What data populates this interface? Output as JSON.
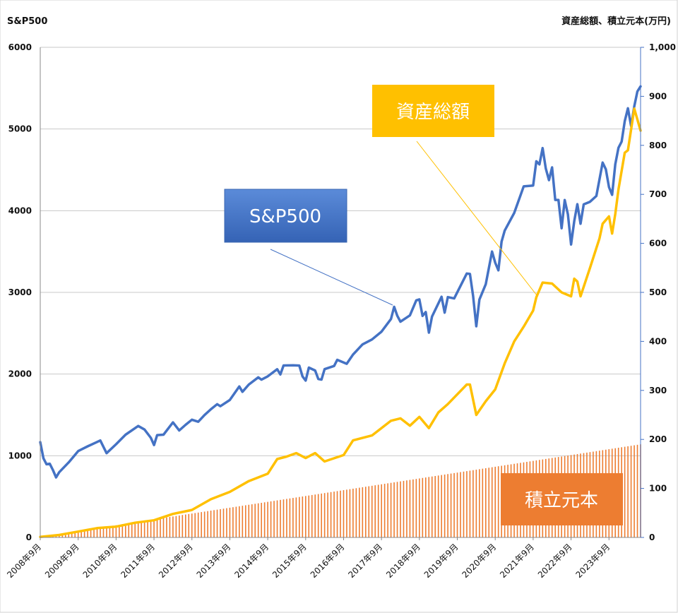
{
  "chart_data": {
    "type": "line",
    "left_axis_title": "S&P500",
    "right_axis_title": "資産総額、積立元本(万円)",
    "left_ylim": [
      0,
      6000
    ],
    "left_yticks": [
      "0",
      "1000",
      "2000",
      "3000",
      "4000",
      "5000",
      "6000"
    ],
    "right_ylim": [
      0,
      1000
    ],
    "right_yticks": [
      "0",
      "100",
      "200",
      "300",
      "400",
      "500",
      "600",
      "700",
      "800",
      "900",
      "1,000"
    ],
    "x_start": "2008-09",
    "x_end": "2024-07",
    "x_tick_labels": [
      "2008年9月",
      "2009年9月",
      "2010年9月",
      "2011年9月",
      "2012年9月",
      "2013年9月",
      "2014年9月",
      "2015年9月",
      "2016年9月",
      "2017年9月",
      "2018年9月",
      "2019年9月",
      "2020年9月",
      "2021年9月",
      "2022年9月",
      "2023年9月"
    ],
    "grid": true,
    "series": [
      {
        "name": "S&P500",
        "axis": "left",
        "color": "#4472C4",
        "kind": "line",
        "points": [
          [
            "2008-09",
            1166
          ],
          [
            "2008-10",
            969
          ],
          [
            "2008-11",
            896
          ],
          [
            "2008-12",
            903
          ],
          [
            "2009-01",
            826
          ],
          [
            "2009-02",
            735
          ],
          [
            "2009-03",
            798
          ],
          [
            "2009-06",
            919
          ],
          [
            "2009-09",
            1057
          ],
          [
            "2009-12",
            1115
          ],
          [
            "2010-03",
            1169
          ],
          [
            "2010-04",
            1187
          ],
          [
            "2010-06",
            1031
          ],
          [
            "2010-09",
            1141
          ],
          [
            "2010-12",
            1258
          ],
          [
            "2011-04",
            1364
          ],
          [
            "2011-06",
            1321
          ],
          [
            "2011-08",
            1219
          ],
          [
            "2011-09",
            1131
          ],
          [
            "2011-10",
            1253
          ],
          [
            "2011-12",
            1258
          ],
          [
            "2012-03",
            1408
          ],
          [
            "2012-05",
            1310
          ],
          [
            "2012-07",
            1379
          ],
          [
            "2012-09",
            1441
          ],
          [
            "2012-11",
            1416
          ],
          [
            "2013-01",
            1498
          ],
          [
            "2013-03",
            1569
          ],
          [
            "2013-05",
            1631
          ],
          [
            "2013-06",
            1606
          ],
          [
            "2013-09",
            1682
          ],
          [
            "2013-12",
            1848
          ],
          [
            "2014-01",
            1783
          ],
          [
            "2014-03",
            1872
          ],
          [
            "2014-06",
            1960
          ],
          [
            "2014-07",
            1931
          ],
          [
            "2014-09",
            1972
          ],
          [
            "2014-12",
            2059
          ],
          [
            "2015-01",
            1995
          ],
          [
            "2015-02",
            2105
          ],
          [
            "2015-05",
            2107
          ],
          [
            "2015-07",
            2104
          ],
          [
            "2015-08",
            1972
          ],
          [
            "2015-09",
            1920
          ],
          [
            "2015-10",
            2079
          ],
          [
            "2015-12",
            2044
          ],
          [
            "2016-01",
            1940
          ],
          [
            "2016-02",
            1932
          ],
          [
            "2016-03",
            2060
          ],
          [
            "2016-06",
            2099
          ],
          [
            "2016-07",
            2174
          ],
          [
            "2016-10",
            2126
          ],
          [
            "2016-12",
            2239
          ],
          [
            "2017-03",
            2363
          ],
          [
            "2017-06",
            2423
          ],
          [
            "2017-09",
            2519
          ],
          [
            "2017-12",
            2674
          ],
          [
            "2018-01",
            2824
          ],
          [
            "2018-02",
            2714
          ],
          [
            "2018-03",
            2641
          ],
          [
            "2018-06",
            2718
          ],
          [
            "2018-08",
            2902
          ],
          [
            "2018-09",
            2914
          ],
          [
            "2018-10",
            2712
          ],
          [
            "2018-11",
            2760
          ],
          [
            "2018-12",
            2507
          ],
          [
            "2019-01",
            2704
          ],
          [
            "2019-04",
            2946
          ],
          [
            "2019-05",
            2752
          ],
          [
            "2019-06",
            2942
          ],
          [
            "2019-08",
            2926
          ],
          [
            "2019-12",
            3231
          ],
          [
            "2020-01",
            3226
          ],
          [
            "2020-02",
            2954
          ],
          [
            "2020-03",
            2585
          ],
          [
            "2020-04",
            2912
          ],
          [
            "2020-06",
            3100
          ],
          [
            "2020-08",
            3500
          ],
          [
            "2020-09",
            3363
          ],
          [
            "2020-10",
            3270
          ],
          [
            "2020-11",
            3622
          ],
          [
            "2020-12",
            3756
          ],
          [
            "2021-03",
            3973
          ],
          [
            "2021-06",
            4298
          ],
          [
            "2021-09",
            4308
          ],
          [
            "2021-10",
            4605
          ],
          [
            "2021-11",
            4567
          ],
          [
            "2021-12",
            4766
          ],
          [
            "2022-01",
            4516
          ],
          [
            "2022-02",
            4374
          ],
          [
            "2022-03",
            4530
          ],
          [
            "2022-04",
            4132
          ],
          [
            "2022-05",
            4132
          ],
          [
            "2022-06",
            3785
          ],
          [
            "2022-07",
            4130
          ],
          [
            "2022-08",
            3955
          ],
          [
            "2022-09",
            3586
          ],
          [
            "2022-10",
            3872
          ],
          [
            "2022-11",
            4080
          ],
          [
            "2022-12",
            3840
          ],
          [
            "2023-01",
            4077
          ],
          [
            "2023-03",
            4109
          ],
          [
            "2023-05",
            4180
          ],
          [
            "2023-07",
            4589
          ],
          [
            "2023-08",
            4508
          ],
          [
            "2023-09",
            4288
          ],
          [
            "2023-10",
            4194
          ],
          [
            "2023-11",
            4568
          ],
          [
            "2023-12",
            4770
          ],
          [
            "2024-01",
            4846
          ],
          [
            "2024-02",
            5096
          ],
          [
            "2024-03",
            5254
          ],
          [
            "2024-04",
            5036
          ],
          [
            "2024-05",
            5278
          ],
          [
            "2024-06",
            5460
          ],
          [
            "2024-07",
            5522
          ]
        ]
      },
      {
        "name": "資産総額",
        "axis": "right",
        "color": "#FFC000",
        "kind": "line",
        "points": [
          [
            "2008-09",
            1
          ],
          [
            "2009-03",
            5
          ],
          [
            "2009-09",
            12
          ],
          [
            "2010-03",
            19
          ],
          [
            "2010-09",
            22
          ],
          [
            "2011-03",
            30
          ],
          [
            "2011-09",
            35
          ],
          [
            "2012-03",
            48
          ],
          [
            "2012-09",
            56
          ],
          [
            "2013-03",
            78
          ],
          [
            "2013-09",
            93
          ],
          [
            "2014-03",
            115
          ],
          [
            "2014-09",
            130
          ],
          [
            "2014-12",
            160
          ],
          [
            "2015-03",
            165
          ],
          [
            "2015-06",
            172
          ],
          [
            "2015-09",
            162
          ],
          [
            "2015-12",
            172
          ],
          [
            "2016-03",
            155
          ],
          [
            "2016-09",
            168
          ],
          [
            "2016-12",
            198
          ],
          [
            "2017-06",
            208
          ],
          [
            "2017-12",
            238
          ],
          [
            "2018-03",
            243
          ],
          [
            "2018-06",
            228
          ],
          [
            "2018-09",
            246
          ],
          [
            "2018-12",
            223
          ],
          [
            "2019-03",
            255
          ],
          [
            "2019-06",
            272
          ],
          [
            "2019-12",
            312
          ],
          [
            "2020-01",
            312
          ],
          [
            "2020-03",
            250
          ],
          [
            "2020-06",
            278
          ],
          [
            "2020-09",
            302
          ],
          [
            "2020-12",
            355
          ],
          [
            "2021-03",
            400
          ],
          [
            "2021-06",
            430
          ],
          [
            "2021-09",
            463
          ],
          [
            "2021-10",
            490
          ],
          [
            "2021-12",
            520
          ],
          [
            "2022-03",
            518
          ],
          [
            "2022-06",
            500
          ],
          [
            "2022-09",
            492
          ],
          [
            "2022-10",
            528
          ],
          [
            "2022-11",
            522
          ],
          [
            "2022-12",
            492
          ],
          [
            "2023-03",
            550
          ],
          [
            "2023-06",
            610
          ],
          [
            "2023-07",
            640
          ],
          [
            "2023-09",
            655
          ],
          [
            "2023-10",
            620
          ],
          [
            "2023-11",
            660
          ],
          [
            "2023-12",
            710
          ],
          [
            "2024-02",
            785
          ],
          [
            "2024-03",
            790
          ],
          [
            "2024-05",
            875
          ],
          [
            "2024-07",
            830
          ]
        ]
      },
      {
        "name": "積立元本",
        "axis": "right",
        "color": "#ED7D31",
        "kind": "bar",
        "start_value": 1,
        "end_value": 190
      }
    ],
    "callouts": [
      {
        "label": "S&P500",
        "fill": "#4472C4"
      },
      {
        "label": "資産総額",
        "fill": "#FFC000"
      },
      {
        "label": "積立元本",
        "fill": "#ED7D31"
      }
    ]
  }
}
